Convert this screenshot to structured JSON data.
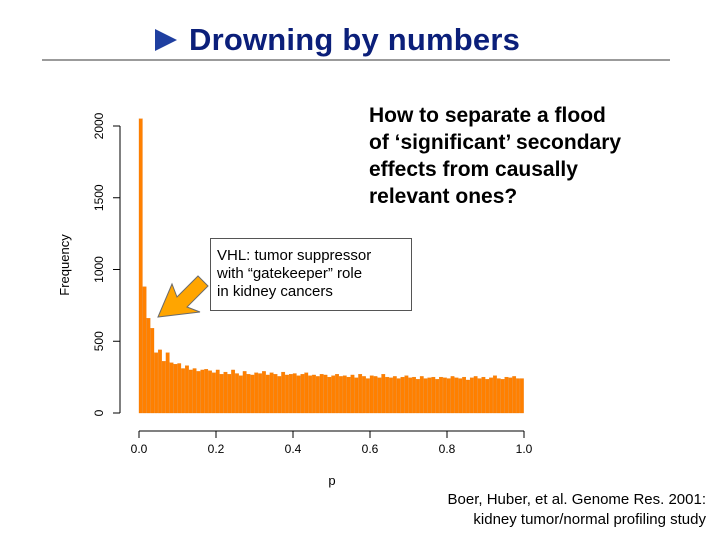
{
  "slide": {
    "title": "Drowning by numbers",
    "question_lines": [
      "How to separate a flood",
      "of ‘significant’ secondary",
      "effects from causally",
      "relevant ones?"
    ],
    "callout_lines": [
      "VHL: tumor suppressor",
      "with “gatekeeper” role",
      "in kidney cancers"
    ],
    "citation_lines": [
      "Boer, Huber, et al. Genome Res. 2001:",
      "kidney tumor/normal profiling study"
    ],
    "title_arrow_color": "#1f3fa0",
    "title_color": "#0b1f7a"
  },
  "chart_data": {
    "type": "bar",
    "title": "",
    "xlabel": "p",
    "ylabel": "Frequency",
    "xlim": [
      0,
      1
    ],
    "ylim": [
      0,
      2000
    ],
    "xticks": [
      "0.0",
      "0.2",
      "0.4",
      "0.6",
      "0.8",
      "1.0"
    ],
    "yticks": [
      "0",
      "500",
      "1000",
      "1500",
      "2000"
    ],
    "bin_width": 0.01,
    "bar_color": "#ff8000",
    "grid": false,
    "values": [
      2050,
      880,
      660,
      590,
      420,
      440,
      360,
      420,
      350,
      340,
      345,
      310,
      330,
      300,
      310,
      290,
      300,
      305,
      295,
      280,
      300,
      270,
      285,
      270,
      300,
      275,
      260,
      290,
      270,
      265,
      280,
      275,
      290,
      265,
      280,
      270,
      255,
      285,
      265,
      270,
      275,
      260,
      270,
      280,
      260,
      265,
      255,
      270,
      265,
      250,
      260,
      270,
      255,
      260,
      250,
      265,
      245,
      270,
      255,
      240,
      260,
      255,
      245,
      270,
      250,
      245,
      255,
      240,
      250,
      260,
      245,
      250,
      235,
      255,
      240,
      245,
      250,
      235,
      250,
      245,
      240,
      255,
      245,
      240,
      250,
      230,
      245,
      255,
      240,
      250,
      235,
      245,
      260,
      240,
      235,
      250,
      245,
      255,
      240,
      240
    ]
  }
}
